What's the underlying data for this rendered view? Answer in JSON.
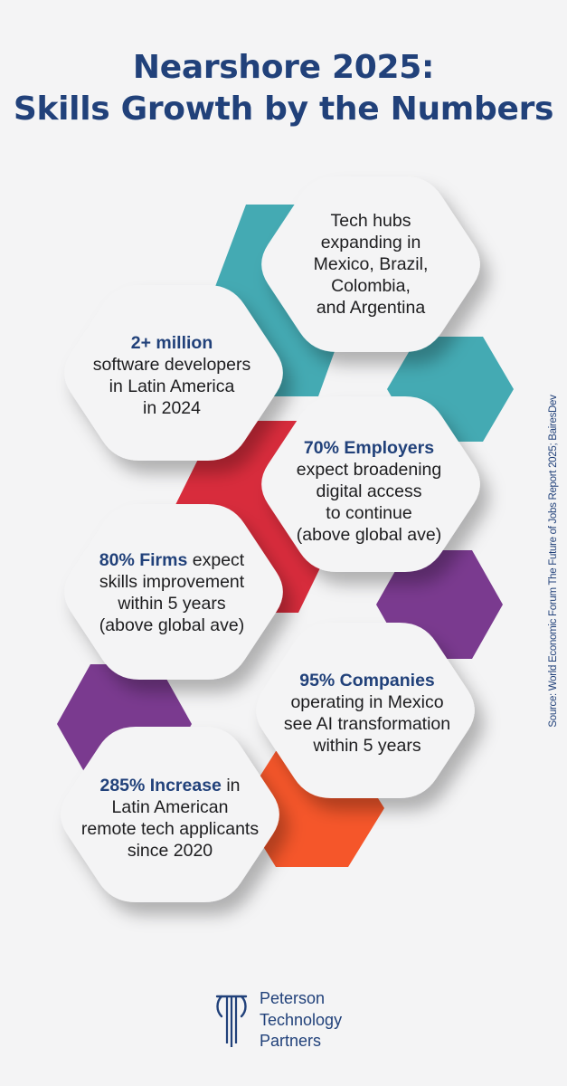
{
  "title": {
    "line1": "Nearshore 2025:",
    "line2": "Skills Growth by the Numbers"
  },
  "colors": {
    "title": "#21417a",
    "teal": "#44aab3",
    "red": "#d82c3c",
    "purple": "#7a3a8f",
    "orange": "#f5562a",
    "hexagon": "#f4f4f5"
  },
  "stats": [
    {
      "highlight": "",
      "lines": [
        "Tech hubs",
        "expanding in",
        "Mexico, Brazil,",
        "Colombia,",
        "and Argentina"
      ]
    },
    {
      "highlight": "2+ million",
      "lines": [
        "software developers",
        "in Latin America",
        "in 2024"
      ]
    },
    {
      "highlight": "70% Employers",
      "lines": [
        "expect broadening",
        "digital access",
        "to continue",
        "(above global ave)"
      ]
    },
    {
      "highlight": "80% Firms",
      "after_highlight": " expect",
      "lines": [
        "skills improvement",
        "within 5 years",
        "(above global ave)"
      ]
    },
    {
      "highlight": "95% Companies",
      "lines": [
        "operating in Mexico",
        "see AI transformation",
        "within 5 years"
      ]
    },
    {
      "highlight": "285% Increase",
      "after_highlight": " in",
      "lines": [
        "Latin American",
        "remote tech applicants",
        "since 2020"
      ]
    }
  ],
  "source": "Source: World Economic Forum The Future of Jobs Report 2025; BairesDev",
  "logo": {
    "line1": "Peterson",
    "line2": "Technology",
    "line3": "Partners",
    "icon": "pillar-icon"
  }
}
